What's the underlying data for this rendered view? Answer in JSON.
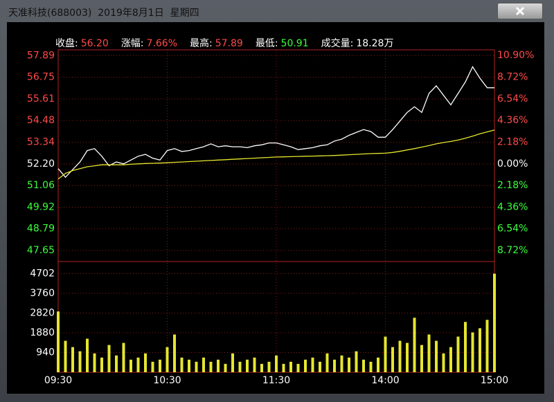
{
  "window": {
    "title": "天准科技(688003)  2019年8月1日  星期四"
  },
  "header": [
    {
      "label": "收盘:",
      "value": "56.20",
      "color": "#ff4a4a"
    },
    {
      "label": "涨幅:",
      "value": "7.66%",
      "color": "#ff4a4a"
    },
    {
      "label": "最高:",
      "value": "57.89",
      "color": "#ff4a4a"
    },
    {
      "label": "最低:",
      "value": "50.91",
      "color": "#3cff3c"
    },
    {
      "label": "成交量:",
      "value": "18.28万",
      "color": "#ffffff"
    }
  ],
  "chart_data": [
    {
      "type": "line",
      "x": [
        0,
        4,
        8,
        12,
        16,
        20,
        24,
        28,
        32,
        36,
        40,
        44,
        48,
        52,
        56,
        60,
        64,
        68,
        72,
        76,
        80,
        84,
        88,
        92,
        96,
        100,
        104,
        108,
        112,
        116,
        120,
        124,
        128,
        132,
        136,
        140,
        144,
        148,
        152,
        156,
        160,
        164,
        168,
        172,
        176,
        180,
        184,
        188,
        192,
        196,
        200,
        204,
        208,
        212,
        216,
        220,
        224,
        228,
        232,
        236,
        240
      ],
      "xlim": [
        0,
        240
      ],
      "xticks": [
        {
          "value": 0,
          "label": "09:30"
        },
        {
          "value": 60,
          "label": "10:30"
        },
        {
          "value": 120,
          "label": "11:30"
        },
        {
          "value": 180,
          "label": "14:00"
        },
        {
          "value": 240,
          "label": "15:00"
        }
      ],
      "ylim": [
        47.07,
        58.19
      ],
      "yticks": [
        57.89,
        56.75,
        55.61,
        54.48,
        53.34,
        {
          "value": 52.2,
          "label": "52.20"
        },
        51.06,
        49.92,
        48.79,
        47.65
      ],
      "y2lim": [
        -9.83,
        11.47
      ],
      "y2ticks": [
        {
          "value": 10.9,
          "label": "10.90%"
        },
        {
          "value": 8.72,
          "label": "8.72%"
        },
        {
          "value": 6.54,
          "label": "6.54%"
        },
        {
          "value": 4.36,
          "label": "4.36%"
        },
        {
          "value": 2.18,
          "label": "2.18%"
        },
        {
          "value": 0,
          "label": "0.00%"
        },
        {
          "value": -2.18,
          "label": "2.18%"
        },
        {
          "value": -4.36,
          "label": "4.36%"
        },
        {
          "value": -6.54,
          "label": "6.54%"
        },
        {
          "value": -8.72,
          "label": "8.72%"
        }
      ],
      "up_color": "#ff4a4a",
      "flat_color": "#ffffff",
      "down_color": "#3cff3c",
      "grid": true,
      "series": [
        {
          "color": "#ffffff",
          "values": [
            51.95,
            51.5,
            51.9,
            52.3,
            52.9,
            53.0,
            52.6,
            52.1,
            52.3,
            52.2,
            52.4,
            52.6,
            52.7,
            52.5,
            52.4,
            52.9,
            53.0,
            52.85,
            52.9,
            53.0,
            53.1,
            53.25,
            53.1,
            53.15,
            53.1,
            53.1,
            53.05,
            53.15,
            53.2,
            53.3,
            53.3,
            53.2,
            53.1,
            52.95,
            53.0,
            53.05,
            53.15,
            53.2,
            53.4,
            53.5,
            53.7,
            53.85,
            54.0,
            53.9,
            53.6,
            53.6,
            54.0,
            54.45,
            54.9,
            55.2,
            54.9,
            55.9,
            56.3,
            55.8,
            55.3,
            55.9,
            56.5,
            57.3,
            56.7,
            56.2,
            56.2
          ]
        },
        {
          "color": "#e6e62e",
          "values": [
            51.4,
            51.7,
            51.85,
            51.95,
            52.05,
            52.1,
            52.15,
            52.15,
            52.15,
            52.15,
            52.18,
            52.2,
            52.22,
            52.23,
            52.24,
            52.26,
            52.28,
            52.3,
            52.32,
            52.34,
            52.36,
            52.38,
            52.4,
            52.42,
            52.44,
            52.46,
            52.48,
            52.5,
            52.52,
            52.54,
            52.56,
            52.57,
            52.58,
            52.59,
            52.6,
            52.61,
            52.62,
            52.63,
            52.64,
            52.66,
            52.68,
            52.7,
            52.72,
            52.74,
            52.75,
            52.76,
            52.8,
            52.86,
            52.93,
            53.0,
            53.08,
            53.16,
            53.25,
            53.32,
            53.38,
            53.45,
            53.55,
            53.66,
            53.78,
            53.88,
            53.98
          ]
        }
      ]
    },
    {
      "type": "bar",
      "ylim": [
        0,
        5280
      ],
      "yticks": [
        4702,
        3760,
        2820,
        1880,
        940
      ],
      "color": "#e6e62e",
      "values": [
        2900,
        1500,
        1200,
        1000,
        1600,
        900,
        700,
        1300,
        800,
        1400,
        600,
        700,
        900,
        500,
        600,
        1200,
        1800,
        700,
        600,
        500,
        700,
        500,
        600,
        400,
        900,
        500,
        600,
        700,
        400,
        500,
        800,
        400,
        500,
        400,
        600,
        700,
        500,
        900,
        600,
        800,
        700,
        1000,
        600,
        500,
        700,
        1700,
        1200,
        1500,
        1400,
        2600,
        1300,
        1800,
        1500,
        900,
        1200,
        1700,
        2400,
        1900,
        2100,
        2500,
        4702
      ]
    }
  ]
}
